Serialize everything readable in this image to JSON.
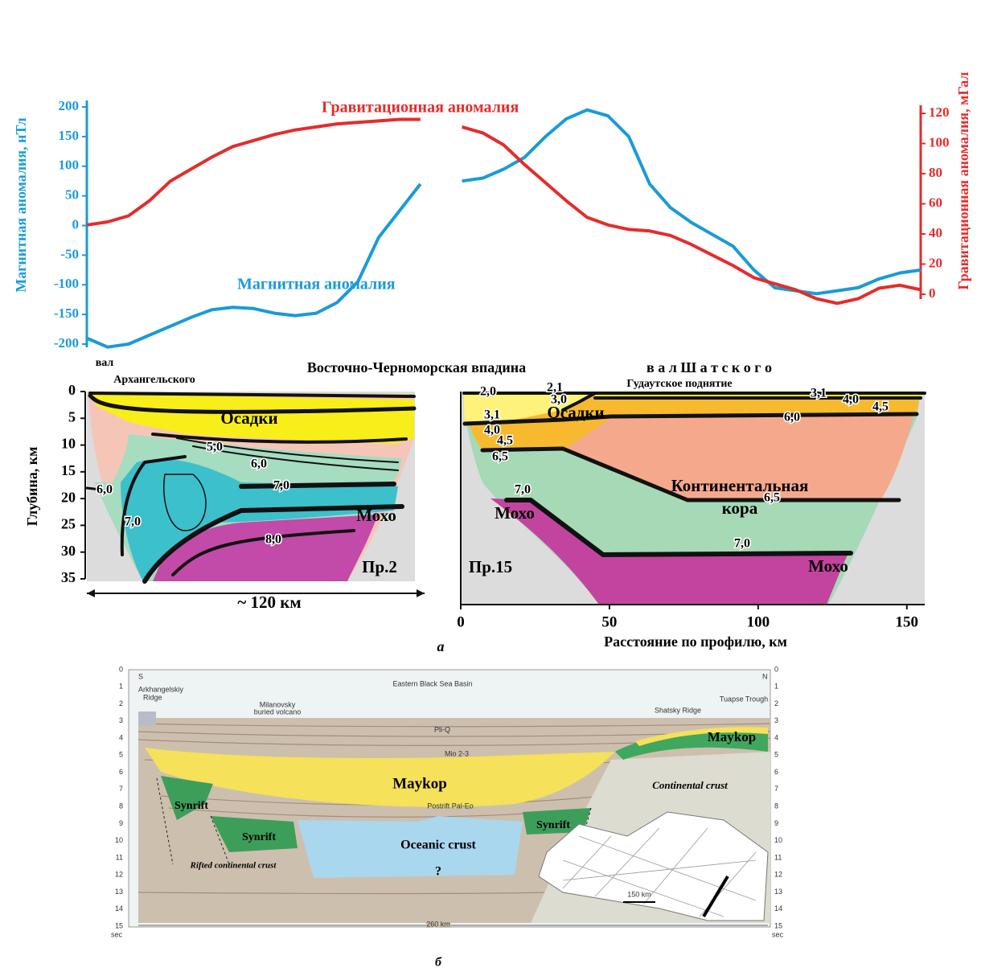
{
  "chart_data": {
    "type": "line",
    "ylabel": "Магнитная аномалия, нТл",
    "y2label": "Гравитационная аномалия, мГал",
    "categories": [
      null,
      null,
      null,
      null,
      null,
      null,
      null,
      null,
      null,
      null,
      null,
      null,
      null,
      null,
      null,
      null,
      null,
      null,
      null,
      null,
      null,
      null,
      null,
      null,
      null,
      null,
      null,
      null,
      null,
      null,
      null,
      null,
      null,
      null,
      null,
      null,
      null,
      null,
      null,
      null,
      null
    ],
    "series": [
      {
        "name": "Магнитная аномалия",
        "color": "#1a9bd7",
        "values": [
          -190,
          -205,
          -200,
          -185,
          -170,
          -155,
          -142,
          -138,
          -140,
          -148,
          -152,
          -148,
          -130,
          -95,
          -20,
          25,
          70,
          null,
          75,
          80,
          95,
          115,
          150,
          180,
          195,
          185,
          150,
          70,
          30,
          5,
          -15,
          -35,
          -75,
          -105,
          -110,
          -115,
          -110,
          -105,
          -90,
          -80,
          -75
        ]
      },
      {
        "name": "Гравитационная аномалия",
        "color": "#e42c2c",
        "axis": "y2",
        "values": [
          46,
          48,
          52,
          62,
          75,
          83,
          91,
          98,
          102,
          106,
          109,
          111,
          113,
          114,
          115,
          116,
          116,
          null,
          111,
          107,
          99,
          86,
          74,
          62,
          51,
          46,
          43,
          42,
          39,
          33,
          26,
          19,
          11,
          7,
          3,
          -3,
          -6,
          -3,
          4,
          6,
          3
        ]
      }
    ],
    "ylim": [
      -200,
      200
    ],
    "yticks": [
      200,
      150,
      100,
      50,
      0,
      -50,
      -100,
      -150,
      -200
    ],
    "y2lim": [
      0,
      120
    ],
    "y2ticks": [
      120,
      100,
      80,
      60,
      40,
      20,
      0
    ]
  },
  "section_a": {
    "label": "а",
    "places": [
      "вал",
      "Архангельского",
      "Восточно-Черноморская впадина",
      "в а л   Ш а т с к о г о",
      "Гудаутское поднятие"
    ],
    "depth_label": "Глубина, км",
    "depth_lim": [
      0,
      35
    ],
    "depth_ticks": [
      0,
      5,
      10,
      15,
      20,
      25,
      30,
      35
    ],
    "distance_label": "Расстояние по профилю, км",
    "distance_lim": [
      0,
      156
    ],
    "distance_ticks": [
      0,
      50,
      100,
      150
    ],
    "profile_2": {
      "name": "Пр.2",
      "sediments": "Осадки",
      "moho": "Мохо",
      "width": "~ 120 км",
      "velocities": [
        "5,0",
        "6,0",
        "7,0",
        "6,0",
        "7,0",
        "8,0"
      ]
    },
    "profile_15": {
      "name": "Пр.15",
      "sediments": "Осадки",
      "crust": [
        "Континентальная",
        "кора"
      ],
      "moho": [
        "Мохо",
        "Мохо"
      ],
      "velocities": [
        "2,0",
        "2,1",
        "3,0",
        "3,1",
        "4,0",
        "4,5",
        "6,5",
        "7,0",
        "3,1",
        "4,0",
        "4,5",
        "6,0",
        "6,5",
        "7,0"
      ]
    }
  },
  "section_b": {
    "label": "б",
    "ends": [
      "S",
      "N"
    ],
    "time_lim": [
      0,
      15
    ],
    "time_ticks": [
      0,
      1,
      2,
      3,
      4,
      5,
      6,
      7,
      8,
      9,
      10,
      11,
      12,
      13,
      14,
      15
    ],
    "time_unit": "sec",
    "title": "Eastern Black Sea Basin",
    "places": [
      "Arkhangelskiy",
      "Ridge",
      "Milanovsky",
      "buried volcano",
      "Shatsky Ridge",
      "Tuapse Trough"
    ],
    "units": [
      "Pli-Q",
      "Mio 2-3",
      "Maykop",
      "Maykop",
      "Continental crust",
      "Postrift Pal-Eo",
      "Synrift",
      "Synrift",
      "Synrift",
      "Oceanic crust",
      "?",
      "Rifted continental crust"
    ],
    "scale": "150 km",
    "length": "260 km"
  }
}
